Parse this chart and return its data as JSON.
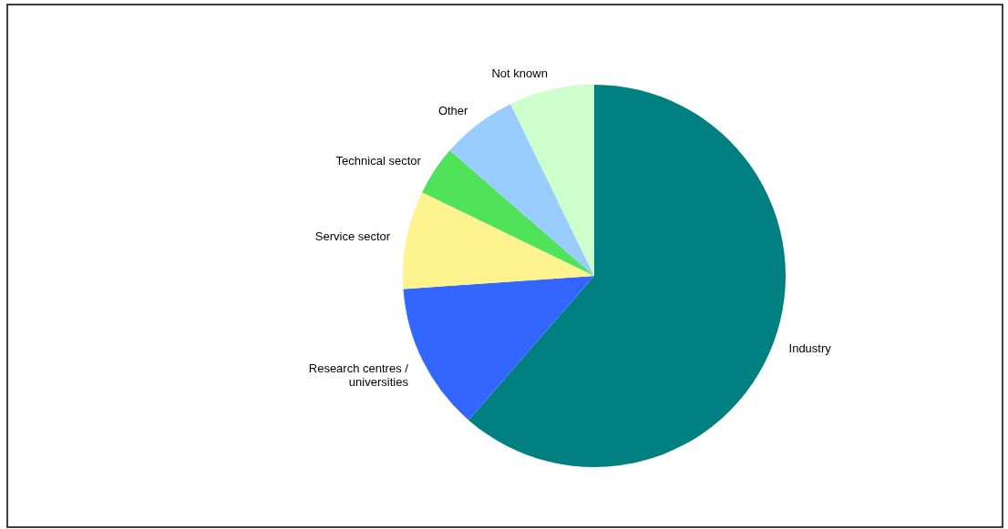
{
  "chart_data": {
    "type": "pie",
    "categories": [
      "Industry",
      "Research centres /\nuniversities",
      "Service sector",
      "Technical sector",
      "Other",
      "Not known"
    ],
    "values": [
      61.4,
      12.5,
      8.3,
      4.2,
      6.4,
      7.2
    ],
    "colors": [
      "#008080",
      "#3366ff",
      "#fff38f",
      "#50e35a",
      "#99ccff",
      "#ccffcc"
    ]
  }
}
